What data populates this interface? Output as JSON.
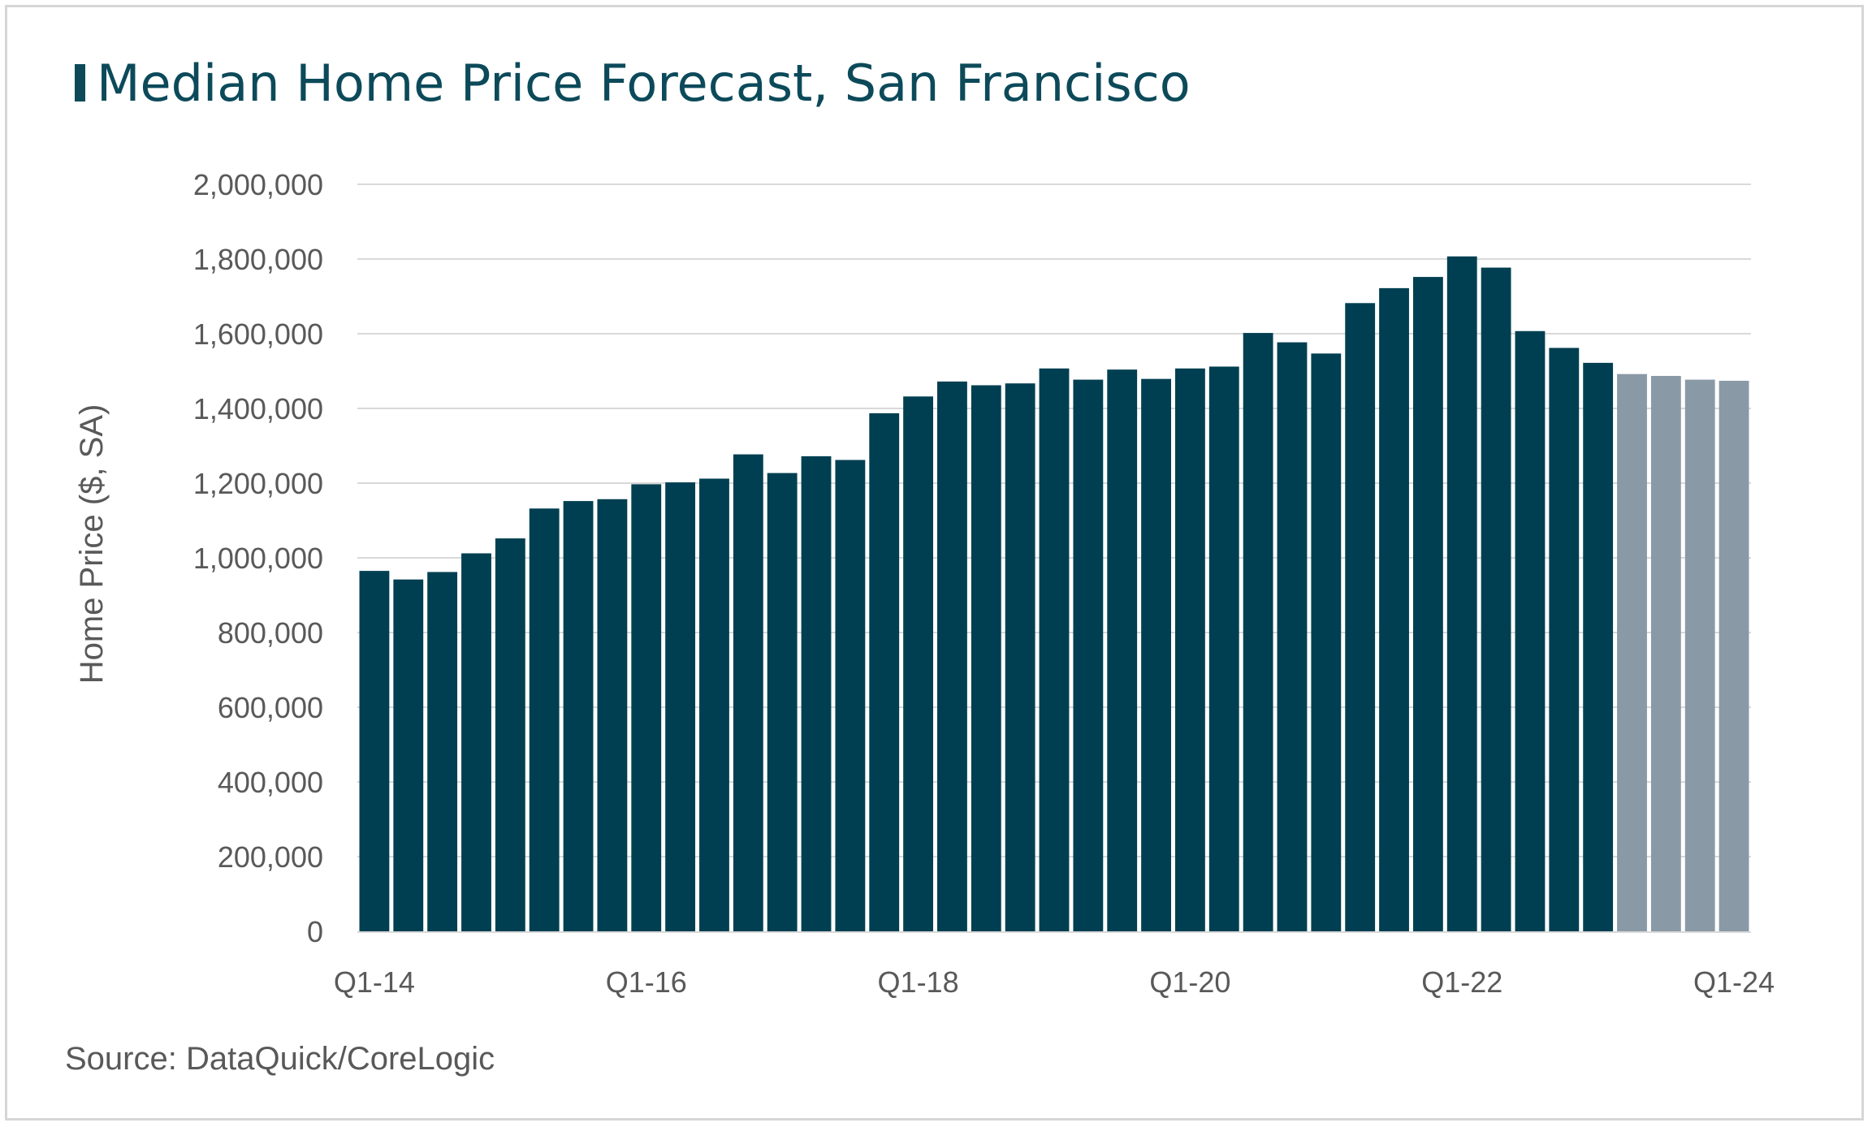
{
  "title": "Median Home Price Forecast, San Francisco",
  "source": "Source: DataQuick/CoreLogic",
  "colors": {
    "actual": "#003f51",
    "forecast": "#8a99a6",
    "title": "#0c4a5a",
    "grid": "#d9d9d9",
    "text": "#595959"
  },
  "chart_data": {
    "type": "bar",
    "ylabel": "Home Price ($, SA)",
    "xlabel": "",
    "ylim": [
      0,
      2000000
    ],
    "yticks": [
      0,
      200000,
      400000,
      600000,
      800000,
      1000000,
      1200000,
      1400000,
      1600000,
      1800000,
      2000000
    ],
    "ytick_labels": [
      "0",
      "200,000",
      "400,000",
      "600,000",
      "800,000",
      "1,000,000",
      "1,200,000",
      "1,400,000",
      "1,600,000",
      "1,800,000",
      "2,000,000"
    ],
    "grid": true,
    "categories": [
      "Q1-14",
      "Q2-14",
      "Q3-14",
      "Q4-14",
      "Q1-15",
      "Q2-15",
      "Q3-15",
      "Q4-15",
      "Q1-16",
      "Q2-16",
      "Q3-16",
      "Q4-16",
      "Q1-17",
      "Q2-17",
      "Q3-17",
      "Q4-17",
      "Q1-18",
      "Q2-18",
      "Q3-18",
      "Q4-18",
      "Q1-19",
      "Q2-19",
      "Q3-19",
      "Q4-19",
      "Q1-20",
      "Q2-20",
      "Q3-20",
      "Q4-20",
      "Q1-21",
      "Q2-21",
      "Q3-21",
      "Q4-21",
      "Q1-22",
      "Q2-22",
      "Q3-22",
      "Q4-22",
      "Q1-23",
      "Q2-23",
      "Q3-23",
      "Q4-23",
      "Q1-24"
    ],
    "xtick_labels": [
      "Q1-14",
      "Q1-16",
      "Q1-18",
      "Q1-20",
      "Q1-22",
      "Q1-24"
    ],
    "values": [
      965000,
      942000,
      962000,
      1012000,
      1052000,
      1132000,
      1152000,
      1157000,
      1197000,
      1202000,
      1212000,
      1277000,
      1227000,
      1272000,
      1262000,
      1387000,
      1432000,
      1472000,
      1462000,
      1467000,
      1507000,
      1477000,
      1504000,
      1479000,
      1507000,
      1512000,
      1602000,
      1577000,
      1547000,
      1682000,
      1722000,
      1752000,
      1807000,
      1777000,
      1607000,
      1562000,
      1522000,
      1492000,
      1487000,
      1477000,
      1474000
    ],
    "forecast_start_index": 37
  }
}
